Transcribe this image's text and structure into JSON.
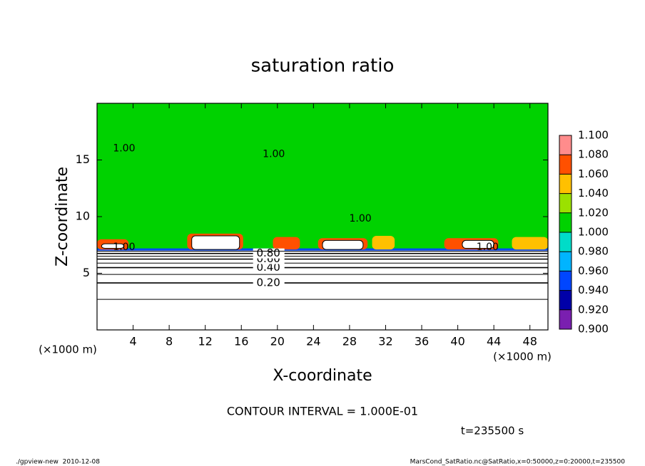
{
  "chart_data": {
    "type": "contour",
    "title": "saturation ratio",
    "x_label": "X-coordinate",
    "y_label": "Z-coordinate",
    "x_unit": "(×1000 m)",
    "y_unit": "(×1000 m)",
    "xlim": [
      0,
      50
    ],
    "xticks": [
      4,
      8,
      12,
      16,
      20,
      24,
      28,
      32,
      36,
      40,
      44,
      48
    ],
    "ylim": [
      0,
      20
    ],
    "yticks": [
      5,
      10,
      15
    ],
    "background_value": 1.0,
    "background_base_z": 7.1,
    "colorbar": {
      "ticks": [
        {
          "value": 0.9,
          "label": "0.900"
        },
        {
          "value": 0.92,
          "label": "0.920"
        },
        {
          "value": 0.94,
          "label": "0.940"
        },
        {
          "value": 0.96,
          "label": "0.960"
        },
        {
          "value": 0.98,
          "label": "0.980"
        },
        {
          "value": 1.0,
          "label": "1.000"
        },
        {
          "value": 1.02,
          "label": "1.020"
        },
        {
          "value": 1.04,
          "label": "1.040"
        },
        {
          "value": 1.06,
          "label": "1.060"
        },
        {
          "value": 1.08,
          "label": "1.080"
        },
        {
          "value": 1.1,
          "label": "1.100"
        }
      ],
      "colors": [
        "#7a1fb0",
        "#0000a8",
        "#0046ff",
        "#00b4ff",
        "#00dcc8",
        "#00d200",
        "#9be100",
        "#ffc000",
        "#ff5000",
        "#ff8c8c"
      ]
    },
    "contours": [
      {
        "level": 0.1,
        "z": 2.7
      },
      {
        "level": {
          "value": 0.2,
          "label": "0.20"
        },
        "z": 4.15
      },
      {
        "level": 0.3,
        "z": 4.9
      },
      {
        "level": {
          "value": 0.4,
          "label": "0.40"
        },
        "z": 5.5
      },
      {
        "level": 0.5,
        "z": 5.9
      },
      {
        "level": {
          "value": 0.6,
          "label": "0.60"
        },
        "z": 6.25
      },
      {
        "level": 0.7,
        "z": 6.5
      },
      {
        "level": {
          "value": 0.8,
          "label": "0.80"
        },
        "z": 6.75
      },
      {
        "level": 0.9,
        "z": 6.95
      }
    ],
    "patches": [
      {
        "x": [
          0,
          3.5
        ],
        "z": [
          7.1,
          8.0
        ],
        "value": 1.06
      },
      {
        "x": [
          10,
          16.2
        ],
        "z": [
          7.1,
          8.5
        ],
        "value": 1.06
      },
      {
        "x": [
          19.5,
          22.5
        ],
        "z": [
          7.1,
          8.2
        ],
        "value": 1.06
      },
      {
        "x": [
          24.5,
          30
        ],
        "z": [
          7.1,
          8.1
        ],
        "value": 1.06
      },
      {
        "x": [
          30.5,
          33
        ],
        "z": [
          7.1,
          8.3
        ],
        "value": 1.04
      },
      {
        "x": [
          38.5,
          44.5
        ],
        "z": [
          7.1,
          8.1
        ],
        "value": 1.06
      },
      {
        "x": [
          46,
          50
        ],
        "z": [
          7.1,
          8.2
        ],
        "value": 1.04
      }
    ],
    "clouds": [
      {
        "x": [
          0.5,
          3.0
        ],
        "z": [
          7.2,
          7.6
        ]
      },
      {
        "x": [
          10.5,
          15.8
        ],
        "z": [
          7.1,
          8.3
        ]
      },
      {
        "x": [
          25,
          29.5
        ],
        "z": [
          7.1,
          7.9
        ]
      },
      {
        "x": [
          40.5,
          44
        ],
        "z": [
          7.2,
          7.9
        ]
      }
    ],
    "contour_labels": [
      {
        "text": "1.00",
        "x": 3,
        "z": 7.3
      },
      {
        "text": "1.00",
        "x": 43.3,
        "z": 7.3
      },
      {
        "text": "1.00",
        "x": 19.6,
        "z": 15.5
      },
      {
        "text": "1.00",
        "x": 3.0,
        "z": 16
      },
      {
        "text": "1.00",
        "x": 29.2,
        "z": 9.8
      }
    ],
    "contour_interval": "CONTOUR INTERVAL = 1.000E-01",
    "time": "t=235500 s",
    "footer_left": "./gpview-new  2010-12-08",
    "footer_right": "MarsCond_SatRatio.nc@SatRatio,x=0:50000,z=0:20000,t=235500"
  }
}
